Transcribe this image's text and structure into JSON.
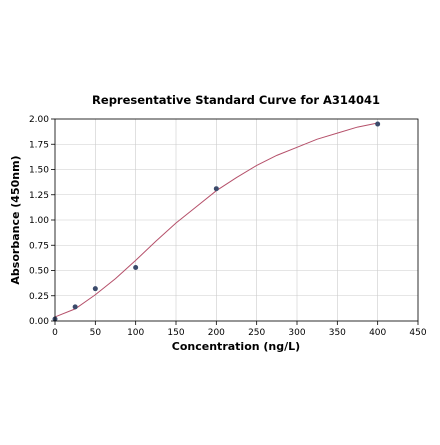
{
  "chart_data": {
    "type": "scatter",
    "title": "Representative Standard Curve for A314041",
    "xlabel": "Concentration (ng/L)",
    "ylabel": "Absorbance (450nm)",
    "xlim": [
      0,
      450
    ],
    "ylim": [
      0,
      2.0
    ],
    "x_ticks": [
      "0",
      "50",
      "100",
      "150",
      "200",
      "250",
      "300",
      "350",
      "400",
      "450"
    ],
    "y_ticks": [
      "0.00",
      "0.25",
      "0.50",
      "0.75",
      "1.00",
      "1.25",
      "1.50",
      "1.75",
      "2.00"
    ],
    "grid": true,
    "points": [
      {
        "x": 0,
        "y": 0.02
      },
      {
        "x": 25,
        "y": 0.14
      },
      {
        "x": 50,
        "y": 0.32
      },
      {
        "x": 100,
        "y": 0.53
      },
      {
        "x": 200,
        "y": 1.31
      },
      {
        "x": 400,
        "y": 1.95
      }
    ],
    "fit_curve": {
      "x": [
        0,
        25,
        50,
        75,
        100,
        125,
        150,
        175,
        200,
        225,
        250,
        275,
        300,
        325,
        350,
        375,
        400
      ],
      "y": [
        0.04,
        0.12,
        0.26,
        0.42,
        0.6,
        0.79,
        0.97,
        1.13,
        1.29,
        1.42,
        1.54,
        1.64,
        1.72,
        1.8,
        1.86,
        1.92,
        1.96
      ]
    },
    "colors": {
      "points": "#3b4a6b",
      "curve": "#b5506a",
      "grid": "#cccccc",
      "axis": "#000000"
    }
  }
}
